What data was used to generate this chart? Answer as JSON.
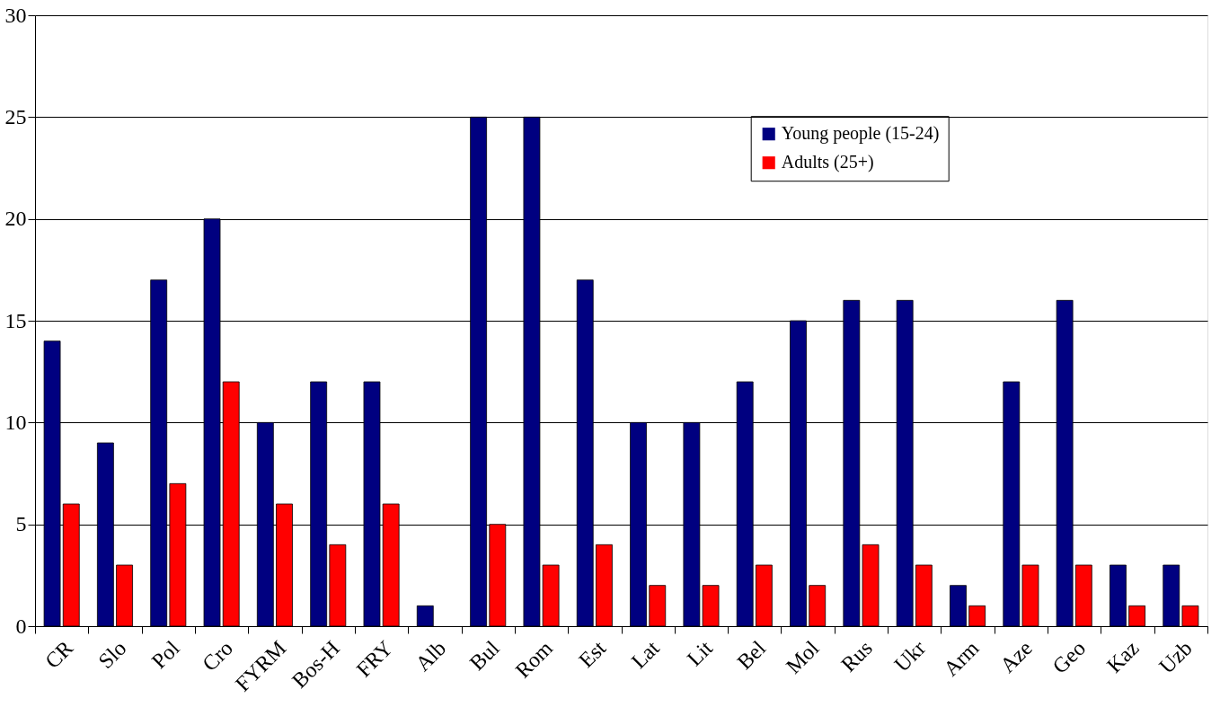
{
  "chart_data": {
    "type": "bar",
    "categories": [
      "CR",
      "Slo",
      "Pol",
      "Cro",
      "FYRM",
      "Bos-H",
      "FRY",
      "Alb",
      "Bul",
      "Rom",
      "Est",
      "Lat",
      "Lit",
      "Bel",
      "Mol",
      "Rus",
      "Ukr",
      "Arm",
      "Aze",
      "Geo",
      "Kaz",
      "Uzb"
    ],
    "series": [
      {
        "name": "Young people (15-24)",
        "color": "#000080",
        "values": [
          14,
          9,
          17,
          20,
          10,
          12,
          12,
          1,
          25,
          25,
          17,
          10,
          10,
          12,
          15,
          16,
          16,
          2,
          12,
          16,
          3,
          3
        ]
      },
      {
        "name": "Adults (25+)",
        "color": "#ff0000",
        "values": [
          6,
          3,
          7,
          12,
          6,
          4,
          6,
          null,
          5,
          3,
          4,
          2,
          2,
          3,
          2,
          4,
          3,
          1,
          3,
          3,
          1,
          1
        ]
      }
    ],
    "ylim": [
      0,
      30
    ],
    "yticks": [
      0,
      5,
      10,
      15,
      20,
      25,
      30
    ],
    "grid": "y",
    "legend": "top right"
  }
}
